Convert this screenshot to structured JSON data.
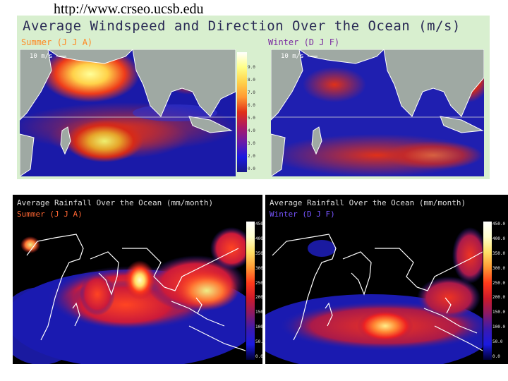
{
  "url": "http://www.crseo.ucsb.edu",
  "wind": {
    "title": "Average Windspeed and Direction Over the Ocean (m/s)",
    "summer_label": "Summer (J J A)",
    "winter_label": "Winter (D J F)",
    "scale_label": "10 m/s",
    "colorbar_ticks": [
      "",
      "9.0",
      "8.0",
      "7.0",
      "6.0",
      "5.0",
      "4.0",
      "3.0",
      "2.0",
      "0.0"
    ],
    "summer_color": "#ff9933",
    "winter_color": "#8833aa"
  },
  "rain_summer": {
    "title": "Average Rainfall Over the Ocean (mm/month)",
    "season": "Summer (J J A)",
    "season_color": "#ff6633",
    "colorbar_ticks": [
      "450.0",
      "400.0",
      "350.0",
      "300.0",
      "250.0",
      "200.0",
      "150.0",
      "100.0",
      "50.0",
      "0.0"
    ]
  },
  "rain_winter": {
    "title": "Average Rainfall Over the Ocean (mm/month)",
    "season": "Winter (D J F)",
    "season_color": "#7755ff",
    "colorbar_ticks": [
      "450.0",
      "400.0",
      "350.0",
      "300.0",
      "250.0",
      "200.0",
      "150.0",
      "100.0",
      "50.0",
      "0.0"
    ]
  }
}
